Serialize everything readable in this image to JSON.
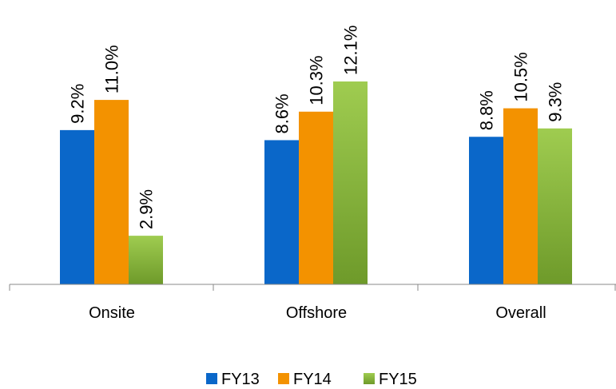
{
  "chart_data": {
    "type": "bar",
    "categories": [
      "Onsite",
      "Offshore",
      "Overall"
    ],
    "series": [
      {
        "name": "FY13",
        "values": [
          9.2,
          8.6,
          8.8
        ],
        "labels": [
          "9.2%",
          "8.6%",
          "8.8%"
        ],
        "color": "#0a67c9"
      },
      {
        "name": "FY14",
        "values": [
          11.0,
          10.3,
          10.5
        ],
        "labels": [
          "11.0%",
          "10.3%",
          "10.5%"
        ],
        "color": "#f39200"
      },
      {
        "name": "FY15",
        "values": [
          2.9,
          12.1,
          9.3
        ],
        "labels": [
          "2.9%",
          "12.1%",
          "9.3%"
        ],
        "color": "#8cbd3f",
        "color_dark": "#6e9a2a"
      }
    ],
    "ylim": [
      0,
      12.1
    ],
    "grid": false,
    "legend_position": "bottom"
  }
}
